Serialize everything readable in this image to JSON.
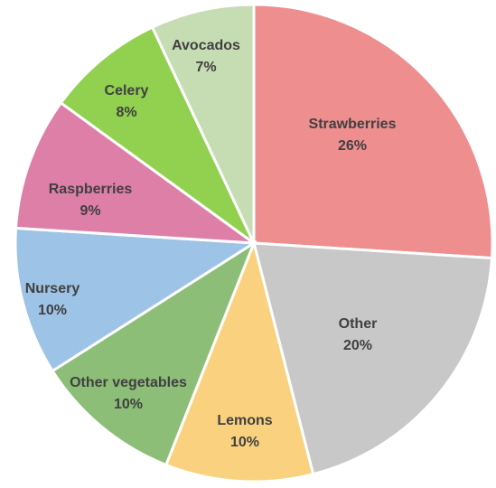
{
  "chart_data": {
    "type": "pie",
    "slices": [
      {
        "name": "Strawberries",
        "value": 26,
        "label": "26%",
        "color": "#EE8E8F"
      },
      {
        "name": "Other",
        "value": 20,
        "label": "20%",
        "color": "#C8C8C8"
      },
      {
        "name": "Lemons",
        "value": 10,
        "label": "10%",
        "color": "#FAD27F"
      },
      {
        "name": "Other vegetables",
        "value": 10,
        "label": "10%",
        "color": "#8CBE78"
      },
      {
        "name": "Nursery",
        "value": 10,
        "label": "10%",
        "color": "#9DC3E6"
      },
      {
        "name": "Raspberries",
        "value": 9,
        "label": "9%",
        "color": "#DE7FA8"
      },
      {
        "name": "Celery",
        "value": 8,
        "label": "8%",
        "color": "#92D050"
      },
      {
        "name": "Avocados",
        "value": 7,
        "label": "7%",
        "color": "#C6DDB4"
      }
    ],
    "start": "12 o'clock",
    "direction": "clockwise",
    "legend": "none",
    "labels": "inside"
  }
}
